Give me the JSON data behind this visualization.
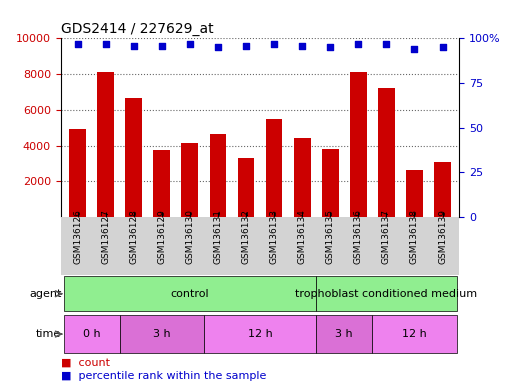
{
  "title": "GDS2414 / 227629_at",
  "samples": [
    "GSM136126",
    "GSM136127",
    "GSM136128",
    "GSM136129",
    "GSM136130",
    "GSM136131",
    "GSM136132",
    "GSM136133",
    "GSM136134",
    "GSM136135",
    "GSM136136",
    "GSM136137",
    "GSM136138",
    "GSM136139"
  ],
  "counts": [
    4900,
    8100,
    6650,
    3750,
    4150,
    4650,
    3300,
    5500,
    4400,
    3800,
    8100,
    7250,
    2650,
    3100
  ],
  "percentile_ranks": [
    97,
    97,
    96,
    96,
    97,
    95,
    96,
    97,
    96,
    95,
    97,
    97,
    94,
    95
  ],
  "bar_color": "#cc0000",
  "dot_color": "#0000cc",
  "ylim_left": [
    0,
    10000
  ],
  "ylim_right": [
    0,
    100
  ],
  "yticks_left": [
    2000,
    4000,
    6000,
    8000,
    10000
  ],
  "yticks_right": [
    0,
    25,
    50,
    75,
    100
  ],
  "agent_groups": [
    {
      "label": "control",
      "start": 0,
      "end": 8,
      "color": "#90ee90"
    },
    {
      "label": "trophoblast conditioned medium",
      "start": 9,
      "end": 13,
      "color": "#90ee90"
    }
  ],
  "time_groups": [
    {
      "label": "0 h",
      "start": 0,
      "end": 1,
      "color": "#ee82ee"
    },
    {
      "label": "3 h",
      "start": 2,
      "end": 4,
      "color": "#da70d6"
    },
    {
      "label": "12 h",
      "start": 5,
      "end": 8,
      "color": "#ee82ee"
    },
    {
      "label": "3 h",
      "start": 9,
      "end": 10,
      "color": "#da70d6"
    },
    {
      "label": "12 h",
      "start": 11,
      "end": 13,
      "color": "#ee82ee"
    }
  ],
  "tick_area_color": "#d3d3d3",
  "background_color": "#ffffff"
}
